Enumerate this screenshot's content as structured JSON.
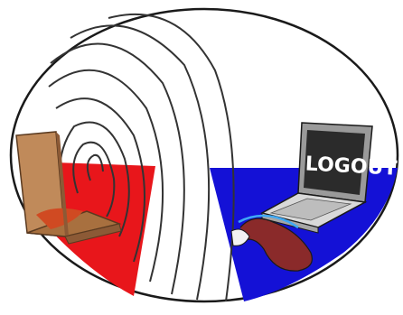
{
  "illustration": {
    "laptop_screen_text": "LOGOUT"
  },
  "colors": {
    "outline": "#1a1a1a",
    "red_wedge": "#e8161b",
    "blue_wedge": "#1411d6",
    "pizza_box": "#c08a5a",
    "pizza_box_dark": "#8c5a36",
    "laptop_body": "#d9d9d9",
    "laptop_screen": "#2b2b2b",
    "cable": "#8a2a2a",
    "signal_arcs": "#333333"
  }
}
